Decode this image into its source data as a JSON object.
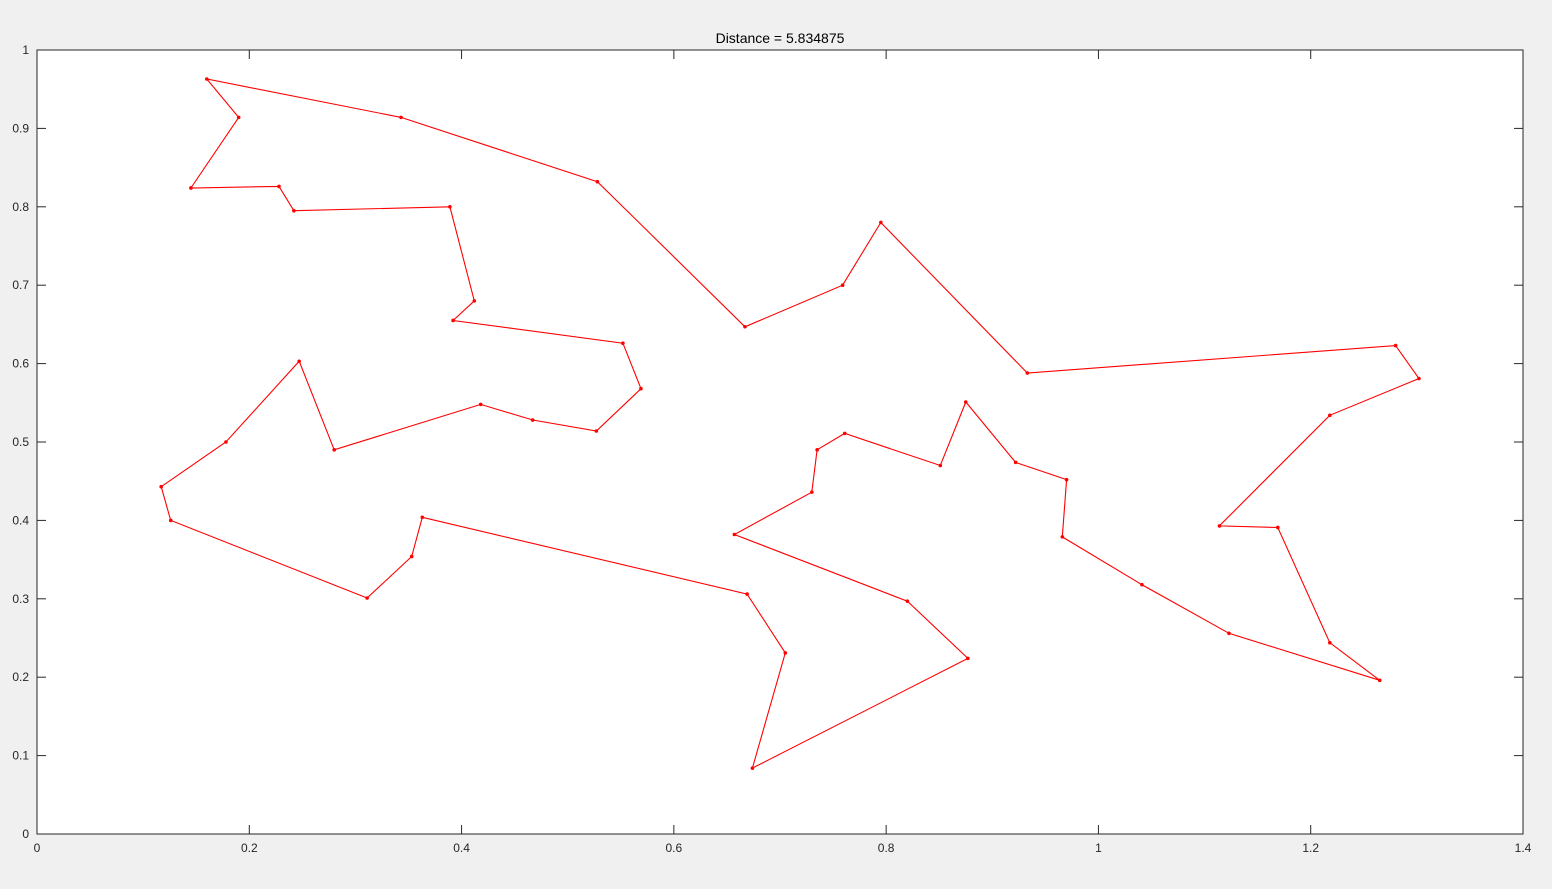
{
  "chart_data": {
    "type": "line",
    "title": "Distance = 5.834875",
    "xlabel": "",
    "ylabel": "",
    "xlim": [
      0,
      1.4
    ],
    "ylim": [
      0,
      1
    ],
    "xticks": [
      0,
      0.2,
      0.4,
      0.6,
      0.8,
      1,
      1.2,
      1.4
    ],
    "xtick_labels": [
      "0",
      "0.2",
      "0.4",
      "0.6",
      "0.8",
      "1",
      "1.2",
      "1.4"
    ],
    "yticks": [
      0,
      0.1,
      0.2,
      0.3,
      0.4,
      0.5,
      0.6,
      0.7,
      0.8,
      0.9,
      1
    ],
    "ytick_labels": [
      "0",
      "0.1",
      "0.2",
      "0.3",
      "0.4",
      "0.5",
      "0.6",
      "0.7",
      "0.8",
      "0.9",
      "1"
    ],
    "grid": false,
    "legend": "none",
    "series": [
      {
        "color": "#ff0000",
        "closed": true,
        "points": [
          [
            0.16,
            0.963
          ],
          [
            0.19,
            0.914
          ],
          [
            0.145,
            0.824
          ],
          [
            0.228,
            0.826
          ],
          [
            0.242,
            0.795
          ],
          [
            0.389,
            0.8
          ],
          [
            0.412,
            0.68
          ],
          [
            0.392,
            0.655
          ],
          [
            0.552,
            0.626
          ],
          [
            0.569,
            0.568
          ],
          [
            0.527,
            0.514
          ],
          [
            0.467,
            0.528
          ],
          [
            0.418,
            0.548
          ],
          [
            0.28,
            0.49
          ],
          [
            0.247,
            0.603
          ],
          [
            0.178,
            0.5
          ],
          [
            0.117,
            0.443
          ],
          [
            0.126,
            0.4
          ],
          [
            0.311,
            0.301
          ],
          [
            0.353,
            0.354
          ],
          [
            0.363,
            0.404
          ],
          [
            0.669,
            0.306
          ],
          [
            0.705,
            0.231
          ],
          [
            0.674,
            0.084
          ],
          [
            0.877,
            0.224
          ],
          [
            0.82,
            0.297
          ],
          [
            0.657,
            0.382
          ],
          [
            0.73,
            0.436
          ],
          [
            0.735,
            0.49
          ],
          [
            0.761,
            0.511
          ],
          [
            0.851,
            0.47
          ],
          [
            0.875,
            0.551
          ],
          [
            0.922,
            0.474
          ],
          [
            0.97,
            0.452
          ],
          [
            0.966,
            0.379
          ],
          [
            1.041,
            0.318
          ],
          [
            1.123,
            0.256
          ],
          [
            1.265,
            0.196
          ],
          [
            1.218,
            0.244
          ],
          [
            1.169,
            0.391
          ],
          [
            1.114,
            0.393
          ],
          [
            1.218,
            0.534
          ],
          [
            1.302,
            0.581
          ],
          [
            1.28,
            0.623
          ],
          [
            0.933,
            0.588
          ],
          [
            0.795,
            0.78
          ],
          [
            0.759,
            0.7
          ],
          [
            0.667,
            0.647
          ],
          [
            0.528,
            0.832
          ],
          [
            0.343,
            0.914
          ]
        ]
      }
    ]
  }
}
